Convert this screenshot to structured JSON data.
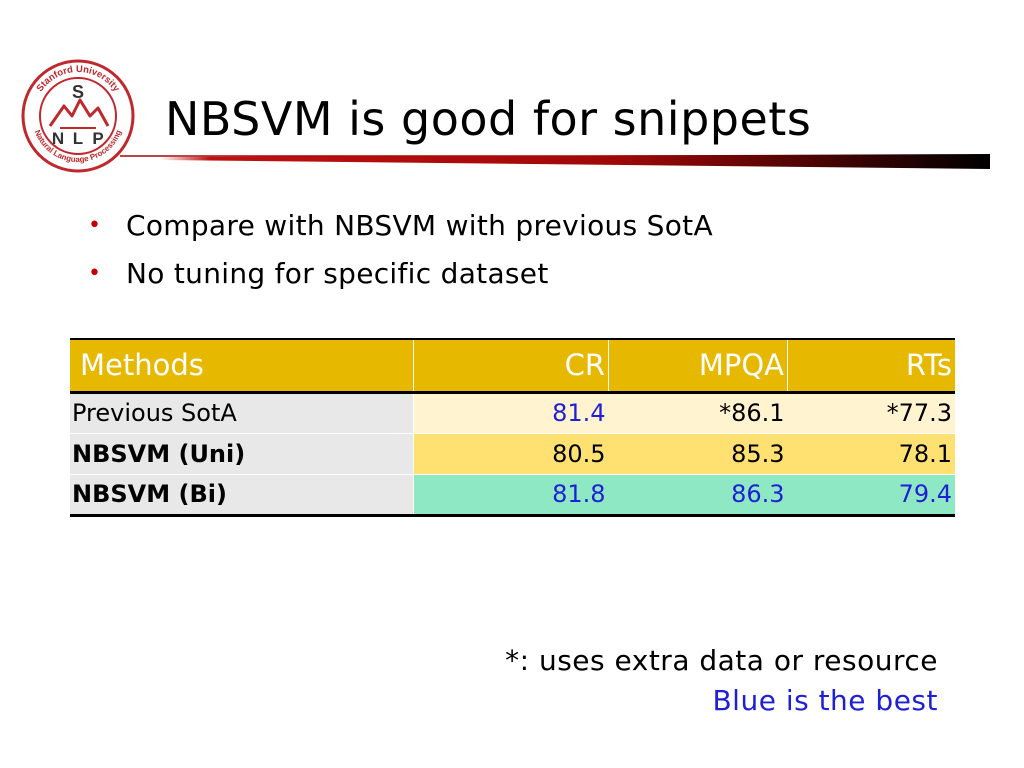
{
  "logo": {
    "ring_text": "Stanford University · Natural Language Processing",
    "letters": [
      "S",
      "N",
      "L",
      "P"
    ],
    "color": "#c0282d"
  },
  "title": "NBSVM is good for snippets",
  "title_rule_gradient": [
    "#ffffff",
    "#b01010",
    "#000000"
  ],
  "bullets": [
    "Compare with NBSVM with previous SotA",
    "No tuning for specific dataset"
  ],
  "bullet_color": "#c00000",
  "table": {
    "headers": [
      "Methods",
      "CR",
      "MPQA",
      "RTs"
    ],
    "rows": [
      {
        "method": "Previous SotA",
        "cr": "81.4",
        "mpqa": "*86.1",
        "rts": "*77.3"
      },
      {
        "method": "NBSVM (Uni)",
        "cr": "80.5",
        "mpqa": "85.3",
        "rts": "78.1"
      },
      {
        "method": "NBSVM (Bi)",
        "cr": "81.8",
        "mpqa": "86.3",
        "rts": "79.4"
      }
    ],
    "colors": {
      "header_bg": "#e6b800",
      "method_bg": "#e8e8e8",
      "row1_bg": "#fff4cf",
      "row2_bg": "#ffe172",
      "row3_bg": "#8fe8c4",
      "best_text": "#1f1fd6"
    }
  },
  "footnotes": {
    "note": "*: uses extra data or resource",
    "legend": "Blue is the best"
  }
}
